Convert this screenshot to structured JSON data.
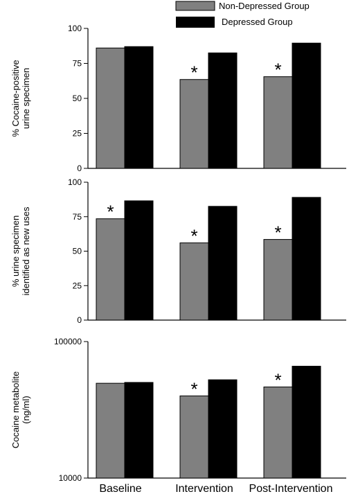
{
  "chart_data": {
    "type": "bar",
    "categories": [
      "Baseline",
      "Intervention",
      "Post-Intervention"
    ],
    "legend": [
      {
        "name": "Non-Depressed Group",
        "color": "#808080"
      },
      {
        "name": "Depressed Group",
        "color": "#000000"
      }
    ],
    "panels": [
      {
        "ylabel": [
          "% Cocaine-positive",
          "urine specimen"
        ],
        "ylim": [
          0,
          100
        ],
        "yticks": [
          "0",
          "25",
          "50",
          "75",
          "100"
        ],
        "yticks_values": [
          0,
          25,
          50,
          75,
          100
        ],
        "scale": "linear",
        "series": [
          {
            "name": "Non-Depressed Group",
            "values": [
              86,
              63.5,
              65.5
            ]
          },
          {
            "name": "Depressed Group",
            "values": [
              87,
              82.5,
              89.5
            ]
          }
        ],
        "significance": [
          "",
          "*",
          "*"
        ]
      },
      {
        "ylabel": [
          "% urine specimen",
          "identified as new uses"
        ],
        "ylim": [
          0,
          100
        ],
        "yticks": [
          "0",
          "25",
          "50",
          "75",
          "100"
        ],
        "yticks_values": [
          0,
          25,
          50,
          75,
          100
        ],
        "scale": "linear",
        "series": [
          {
            "name": "Non-Depressed Group",
            "values": [
              73.5,
              56,
              58.5
            ]
          },
          {
            "name": "Depressed Group",
            "values": [
              86.5,
              82.5,
              89
            ]
          }
        ],
        "significance": [
          "*",
          "*",
          "*"
        ]
      },
      {
        "ylabel": [
          "Cocaine metabolite",
          "(ng/ml)"
        ],
        "ylim": [
          10000,
          100000
        ],
        "yticks": [
          "10000",
          "100000"
        ],
        "yticks_values": [
          10000,
          100000
        ],
        "scale": "log",
        "series": [
          {
            "name": "Non-Depressed Group",
            "values": [
              49500,
              40000,
              46500
            ]
          },
          {
            "name": "Depressed Group",
            "values": [
              50200,
              52500,
              66000
            ]
          }
        ],
        "significance": [
          "",
          "*",
          "*"
        ]
      }
    ]
  }
}
